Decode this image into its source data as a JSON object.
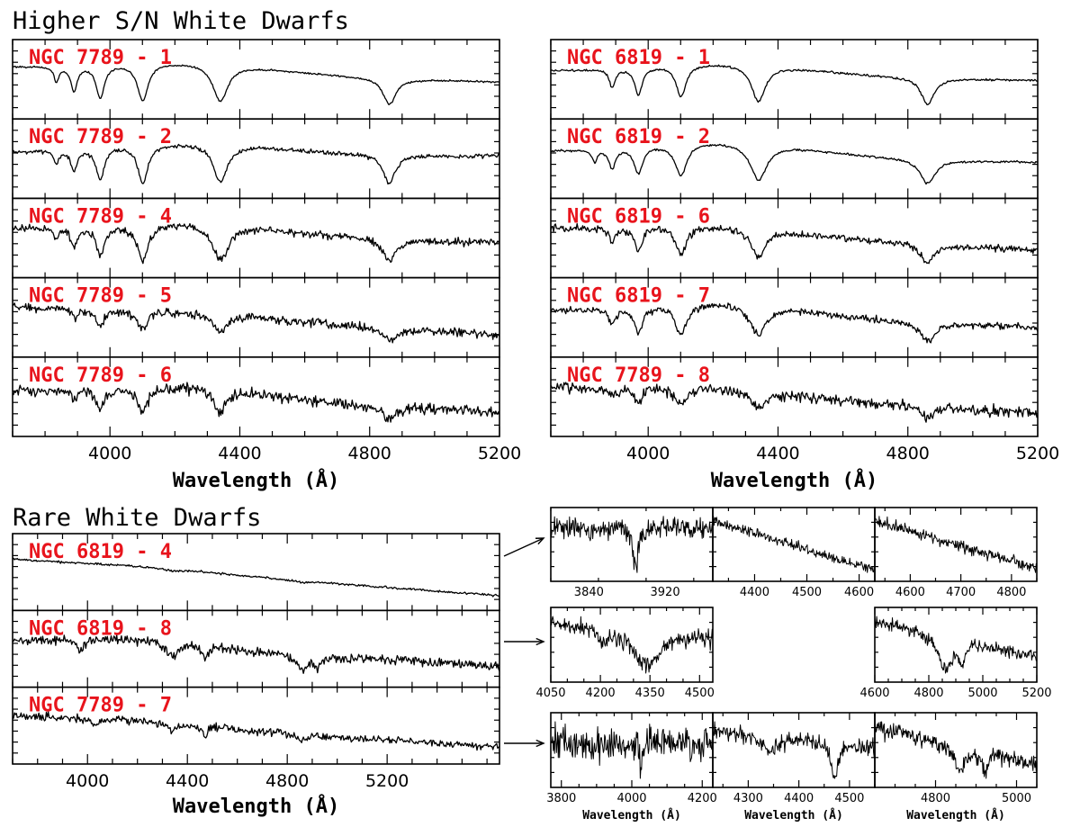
{
  "titles": {
    "higher": "Higher S/N White Dwarfs",
    "rare": "Rare White Dwarfs"
  },
  "chart_data": [
    {
      "type": "line",
      "group": "higher-left",
      "xlabel": "Wavelength (Å)",
      "xlim": [
        3700,
        5200
      ],
      "xticks": [
        4000,
        4400,
        4800,
        5200
      ],
      "series": [
        {
          "name": "NGC 7789 - 1",
          "noise": 0.01,
          "slope": -0.18,
          "bump": 0.12,
          "lines": [
            [
              4861,
              0.32,
              24
            ],
            [
              4340,
              0.45,
              28
            ],
            [
              4101,
              0.45,
              20
            ],
            [
              3970,
              0.4,
              15
            ],
            [
              3889,
              0.3,
              12
            ],
            [
              3835,
              0.18,
              9
            ]
          ]
        },
        {
          "name": "NGC 7789 - 2",
          "noise": 0.03,
          "slope": -0.05,
          "bump": 0.15,
          "lines": [
            [
              4861,
              0.42,
              22
            ],
            [
              4340,
              0.55,
              26
            ],
            [
              4101,
              0.55,
              19
            ],
            [
              3970,
              0.45,
              15
            ],
            [
              3889,
              0.3,
              12
            ],
            [
              3835,
              0.2,
              9
            ]
          ]
        },
        {
          "name": "NGC 7789 - 4",
          "noise": 0.05,
          "slope": -0.2,
          "bump": 0.15,
          "lines": [
            [
              4861,
              0.3,
              26
            ],
            [
              4340,
              0.5,
              30
            ],
            [
              4101,
              0.5,
              22
            ],
            [
              3970,
              0.42,
              16
            ],
            [
              3889,
              0.28,
              12
            ],
            [
              3835,
              0.15,
              9
            ]
          ]
        },
        {
          "name": "NGC 7789 - 5",
          "noise": 0.07,
          "slope": -0.45,
          "bump": 0.08,
          "lines": [
            [
              4861,
              0.2,
              22
            ],
            [
              4340,
              0.3,
              24
            ],
            [
              4101,
              0.32,
              18
            ],
            [
              3970,
              0.25,
              14
            ],
            [
              3889,
              0.15,
              10
            ]
          ]
        },
        {
          "name": "NGC 7789 - 6",
          "noise": 0.09,
          "slope": -0.35,
          "bump": 0.2,
          "lines": [
            [
              4861,
              0.22,
              24
            ],
            [
              4340,
              0.38,
              24
            ],
            [
              4101,
              0.42,
              18
            ],
            [
              3970,
              0.35,
              14
            ],
            [
              3889,
              0.2,
              10
            ]
          ]
        }
      ]
    },
    {
      "type": "line",
      "group": "higher-right",
      "xlabel": "Wavelength (Å)",
      "xlim": [
        3700,
        5200
      ],
      "xticks": [
        4000,
        4400,
        4800,
        5200
      ],
      "series": [
        {
          "name": "NGC 6819 - 1",
          "noise": 0.012,
          "slope": -0.1,
          "bump": 0.12,
          "lines": [
            [
              4861,
              0.3,
              24
            ],
            [
              4340,
              0.4,
              26
            ],
            [
              4101,
              0.35,
              18
            ],
            [
              3970,
              0.3,
              14
            ],
            [
              3889,
              0.2,
              11
            ]
          ]
        },
        {
          "name": "NGC 6819 - 2",
          "noise": 0.015,
          "slope": -0.15,
          "bump": 0.2,
          "lines": [
            [
              4861,
              0.35,
              28
            ],
            [
              4340,
              0.52,
              32
            ],
            [
              4101,
              0.45,
              22
            ],
            [
              3970,
              0.38,
              16
            ],
            [
              3889,
              0.28,
              12
            ],
            [
              3835,
              0.18,
              9
            ]
          ]
        },
        {
          "name": "NGC 6819 - 6",
          "noise": 0.045,
          "slope": -0.3,
          "bump": 0.12,
          "lines": [
            [
              4861,
              0.25,
              24
            ],
            [
              4340,
              0.38,
              26
            ],
            [
              4101,
              0.38,
              19
            ],
            [
              3970,
              0.32,
              14
            ],
            [
              3889,
              0.2,
              11
            ]
          ]
        },
        {
          "name": "NGC 6819 - 7",
          "noise": 0.05,
          "slope": -0.25,
          "bump": 0.22,
          "lines": [
            [
              4861,
              0.3,
              26
            ],
            [
              4340,
              0.48,
              30
            ],
            [
              4101,
              0.48,
              22
            ],
            [
              3970,
              0.4,
              16
            ],
            [
              3889,
              0.25,
              12
            ]
          ]
        },
        {
          "name": "NGC 7789 - 8",
          "noise": 0.09,
          "slope": -0.45,
          "bump": 0.12,
          "lines": [
            [
              4861,
              0.2,
              22
            ],
            [
              4340,
              0.3,
              24
            ],
            [
              4101,
              0.3,
              18
            ],
            [
              3970,
              0.25,
              14
            ],
            [
              3889,
              0.15,
              10
            ]
          ]
        }
      ]
    },
    {
      "type": "line",
      "group": "rare",
      "xlabel": "Wavelength (Å)",
      "xlim": [
        3700,
        5650
      ],
      "xticks": [
        4000,
        4400,
        4800,
        5200
      ],
      "series": [
        {
          "name": "NGC 6819 - 4",
          "noise": 0.02,
          "slope": -0.7,
          "bump": 0.05,
          "lines": [
            [
              4861,
              0.03,
              30
            ],
            [
              4340,
              0.04,
              40
            ]
          ]
        },
        {
          "name": "NGC 6819 - 8",
          "noise": 0.06,
          "slope": -0.35,
          "bump": 0.1,
          "lines": [
            [
              4340,
              0.2,
              30
            ],
            [
              4471,
              0.15,
              14
            ],
            [
              4861,
              0.2,
              26
            ],
            [
              4922,
              0.14,
              14
            ],
            [
              3970,
              0.15,
              14
            ]
          ]
        },
        {
          "name": "NGC 7789 - 7",
          "noise": 0.07,
          "slope": -0.55,
          "bump": 0.05,
          "lines": [
            [
              4471,
              0.2,
              10
            ],
            [
              4340,
              0.12,
              20
            ],
            [
              4026,
              0.12,
              10
            ],
            [
              4861,
              0.1,
              20
            ]
          ]
        }
      ]
    },
    {
      "type": "line",
      "group": "zoom",
      "xlabel": "Wavelength (Å)",
      "panels": [
        {
          "row": 0,
          "col": 0,
          "xlim": [
            3800,
            3970
          ],
          "xticks": [
            3840,
            3920
          ],
          "noise": 0.12,
          "slope": 0.0,
          "lines": [
            [
              3889,
              0.5,
              3
            ]
          ]
        },
        {
          "row": 0,
          "col": 1,
          "xlim": [
            4320,
            4630
          ],
          "xticks": [
            4400,
            4500,
            4600
          ],
          "noise": 0.1,
          "slope": -1.0,
          "lines": []
        },
        {
          "row": 0,
          "col": 2,
          "xlim": [
            4530,
            4850
          ],
          "xticks": [
            4600,
            4700,
            4800
          ],
          "noise": 0.12,
          "slope": -1.0,
          "lines": []
        },
        {
          "row": 1,
          "col": 0,
          "xlim": [
            4050,
            4540
          ],
          "xticks": [
            4050,
            4200,
            4350,
            4500
          ],
          "noise": 0.12,
          "slope": -0.2,
          "lines": [
            [
              4340,
              0.5,
              45
            ],
            [
              4210,
              0.2,
              15
            ]
          ]
        },
        {
          "row": 1,
          "col": 2,
          "xlim": [
            4600,
            5200
          ],
          "xticks": [
            4600,
            4800,
            5000,
            5200
          ],
          "noise": 0.1,
          "slope": -0.6,
          "lines": [
            [
              4861,
              0.55,
              30
            ],
            [
              4922,
              0.35,
              12
            ]
          ]
        },
        {
          "row": 2,
          "col": 0,
          "xlim": [
            3770,
            4230
          ],
          "xticks": [
            3800,
            4000,
            4200
          ],
          "noise": 0.15,
          "slope": 0.0,
          "lines": [
            [
              4026,
              0.15,
              8
            ],
            [
              3889,
              0.12,
              8
            ]
          ]
        },
        {
          "row": 2,
          "col": 1,
          "xlim": [
            4230,
            4550
          ],
          "xticks": [
            4300,
            4400,
            4500
          ],
          "noise": 0.13,
          "slope": -0.3,
          "lines": [
            [
              4471,
              0.55,
              8
            ],
            [
              4340,
              0.25,
              20
            ]
          ]
        },
        {
          "row": 2,
          "col": 2,
          "xlim": [
            4650,
            5050
          ],
          "xticks": [
            4800,
            5000
          ],
          "noise": 0.13,
          "slope": -0.5,
          "lines": [
            [
              4861,
              0.3,
              22
            ],
            [
              4922,
              0.25,
              8
            ]
          ]
        }
      ]
    }
  ]
}
